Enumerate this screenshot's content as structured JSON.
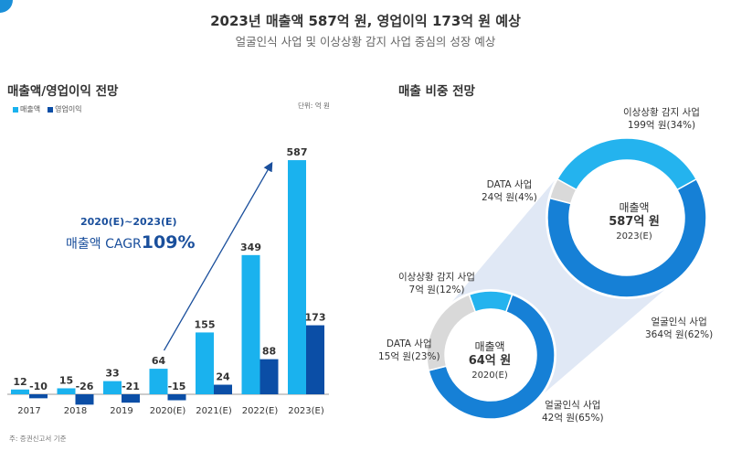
{
  "header": {
    "title": "2023년 매출액 587억 원, 영업이익 173억 원 예상",
    "subtitle": "얼굴인식 사업 및 이상상황 감지 사업 중심의 성장 예상"
  },
  "colors": {
    "revenue": "#1ab2ee",
    "operating_income": "#0b4ea6",
    "donut_face": "#1680d6",
    "donut_anomaly": "#24b3ee",
    "donut_data": "#d9d9d9",
    "accent_text": "#1a4f9c"
  },
  "bar_section": {
    "title": "매출액/영업이익 전망",
    "unit": "단위: 억 원",
    "cagr_period": "2020(E)~2023(E)",
    "cagr_prefix": "매출액 CAGR",
    "cagr_value": "109%"
  },
  "donut_section": {
    "title": "매출 비중 전망"
  },
  "footnote": "주: 증권신고서 기준",
  "chart_data": [
    {
      "type": "bar",
      "title": "매출액/영업이익 전망",
      "categories": [
        "2017",
        "2018",
        "2019",
        "2020(E)",
        "2021(E)",
        "2022(E)",
        "2023(E)"
      ],
      "series": [
        {
          "name": "매출액",
          "values": [
            12,
            15,
            33,
            64,
            155,
            349,
            587
          ]
        },
        {
          "name": "영업이익",
          "values": [
            -10,
            -26,
            -21,
            -15,
            24,
            88,
            173
          ]
        }
      ],
      "legend": "top-left",
      "grid": false
    },
    {
      "type": "pie",
      "title": "2020(E)",
      "center": {
        "label": "매출액",
        "amount": "64억 원",
        "year": "2020(E)"
      },
      "slices": [
        {
          "name": "이상상황 감지 사업",
          "value": 7,
          "label": "7억 원(12%)"
        },
        {
          "name": "얼굴인식 사업",
          "value": 42,
          "label": "42억 원(65%)"
        },
        {
          "name": "DATA 사업",
          "value": 15,
          "label": "15억 원(23%)"
        }
      ]
    },
    {
      "type": "pie",
      "title": "2023(E)",
      "center": {
        "label": "매출액",
        "amount": "587억 원",
        "year": "2023(E)"
      },
      "slices": [
        {
          "name": "이상상황 감지 사업",
          "value": 199,
          "label": "199억 원(34%)"
        },
        {
          "name": "얼굴인식 사업",
          "value": 364,
          "label": "364억 원(62%)"
        },
        {
          "name": "DATA 사업",
          "value": 24,
          "label": "24억 원(4%)"
        }
      ]
    }
  ]
}
